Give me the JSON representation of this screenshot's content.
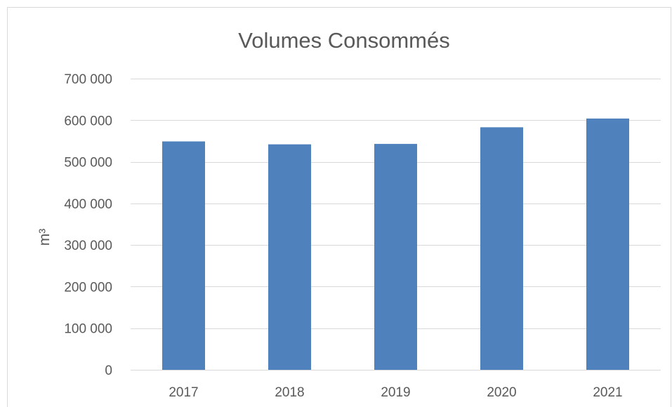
{
  "chart_data": {
    "type": "bar",
    "title": "Volumes Consommés",
    "xlabel": "",
    "ylabel": "m³",
    "categories": [
      "2017",
      "2018",
      "2019",
      "2020",
      "2021"
    ],
    "values": [
      549000,
      542000,
      543000,
      583000,
      604000
    ],
    "ylim": [
      0,
      700000
    ],
    "yticks": [
      0,
      100000,
      200000,
      300000,
      400000,
      500000,
      600000,
      700000
    ],
    "ytick_labels": [
      "0",
      "100 000",
      "200 000",
      "300 000",
      "400 000",
      "500 000",
      "600 000",
      "700 000"
    ],
    "grid": true,
    "legend": "none",
    "bar_color": "#4f81bd",
    "grid_color": "#d9d9d9"
  }
}
